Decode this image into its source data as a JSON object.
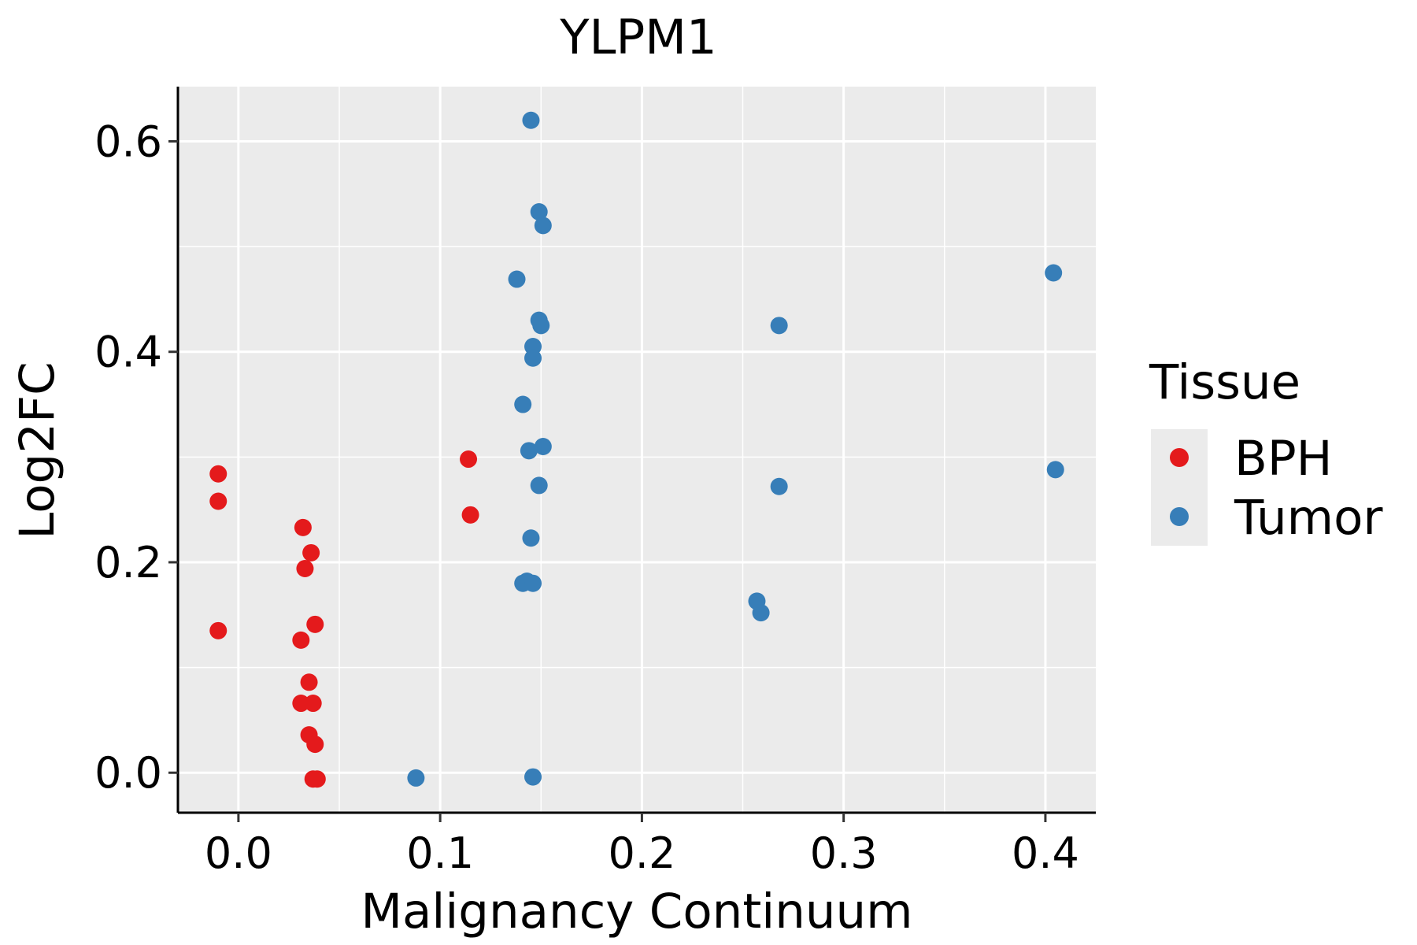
{
  "chart_data": {
    "type": "scatter",
    "title": "YLPM1",
    "xlabel": "Malignancy Continuum",
    "ylabel": "Log2FC",
    "xlim": [
      -0.03,
      0.425
    ],
    "ylim": [
      -0.038,
      0.652
    ],
    "x_ticks": [
      0.0,
      0.1,
      0.2,
      0.3,
      0.4
    ],
    "x_tick_labels": [
      "0.0",
      "0.1",
      "0.2",
      "0.3",
      "0.4"
    ],
    "y_ticks": [
      0.0,
      0.2,
      0.4,
      0.6
    ],
    "y_tick_labels": [
      "0.0",
      "0.2",
      "0.4",
      "0.6"
    ],
    "grid": true,
    "legend": {
      "title": "Tissue",
      "placement": "right",
      "entries": [
        {
          "label": "BPH",
          "color": "#E41A1C"
        },
        {
          "label": "Tumor",
          "color": "#377EB8"
        }
      ]
    },
    "series": [
      {
        "name": "BPH",
        "color": "#E41A1C",
        "points": [
          [
            -0.01,
            0.284
          ],
          [
            -0.01,
            0.258
          ],
          [
            -0.01,
            0.135
          ],
          [
            0.032,
            0.233
          ],
          [
            0.036,
            0.209
          ],
          [
            0.033,
            0.194
          ],
          [
            0.038,
            0.141
          ],
          [
            0.031,
            0.126
          ],
          [
            0.035,
            0.086
          ],
          [
            0.031,
            0.066
          ],
          [
            0.037,
            0.066
          ],
          [
            0.035,
            0.036
          ],
          [
            0.038,
            0.027
          ],
          [
            0.037,
            -0.006
          ],
          [
            0.039,
            -0.006
          ],
          [
            0.114,
            0.298
          ],
          [
            0.115,
            0.245
          ]
        ]
      },
      {
        "name": "Tumor",
        "color": "#377EB8",
        "points": [
          [
            0.145,
            0.62
          ],
          [
            0.149,
            0.533
          ],
          [
            0.151,
            0.52
          ],
          [
            0.138,
            0.469
          ],
          [
            0.149,
            0.43
          ],
          [
            0.15,
            0.425
          ],
          [
            0.146,
            0.405
          ],
          [
            0.146,
            0.394
          ],
          [
            0.141,
            0.35
          ],
          [
            0.151,
            0.31
          ],
          [
            0.144,
            0.306
          ],
          [
            0.149,
            0.273
          ],
          [
            0.145,
            0.223
          ],
          [
            0.143,
            0.182
          ],
          [
            0.141,
            0.18
          ],
          [
            0.146,
            0.18
          ],
          [
            0.088,
            -0.005
          ],
          [
            0.146,
            -0.004
          ],
          [
            0.268,
            0.425
          ],
          [
            0.268,
            0.272
          ],
          [
            0.257,
            0.163
          ],
          [
            0.259,
            0.152
          ],
          [
            0.404,
            0.475
          ],
          [
            0.405,
            0.288
          ]
        ]
      }
    ]
  }
}
